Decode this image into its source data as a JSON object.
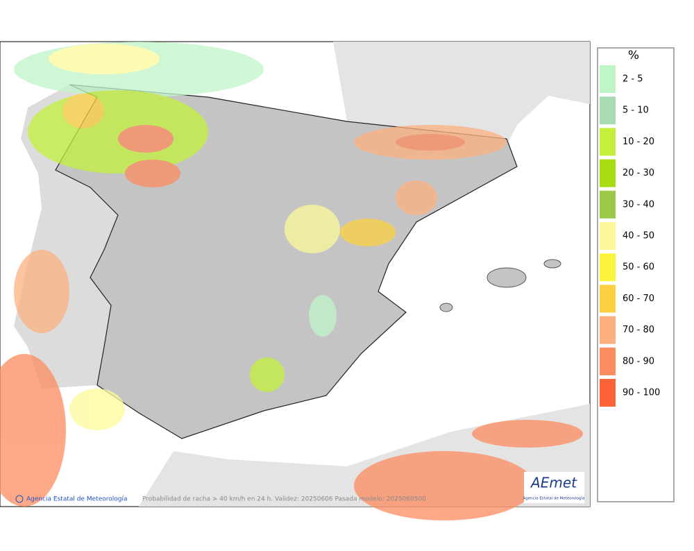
{
  "map": {
    "footer_agency": "Agencia Estatal de Meteorología",
    "footer_caption": "Probabilidad de racha > 40 km/h en 24 h. Validez: 20250606 Pasada modelo: 2025060500",
    "logo": {
      "name": "AEmet",
      "subtitle": "Agencia Estatal de Meteorología"
    }
  },
  "legend": {
    "title": "%",
    "items": [
      {
        "label": "2 - 5",
        "color": "#c0f5c8"
      },
      {
        "label": "5 - 10",
        "color": "#a8dcb0"
      },
      {
        "label": "10 - 20",
        "color": "#c4f03c"
      },
      {
        "label": "20 - 30",
        "color": "#a8dc10"
      },
      {
        "label": "30 - 40",
        "color": "#9cc848"
      },
      {
        "label": "40 - 50",
        "color": "#fdf99a"
      },
      {
        "label": "50 - 60",
        "color": "#fbf43c"
      },
      {
        "label": "60 - 70",
        "color": "#fcd040"
      },
      {
        "label": "70 - 80",
        "color": "#fcb080"
      },
      {
        "label": "80 - 90",
        "color": "#fc8c60"
      },
      {
        "label": "90 - 100",
        "color": "#fc6438"
      }
    ]
  }
}
